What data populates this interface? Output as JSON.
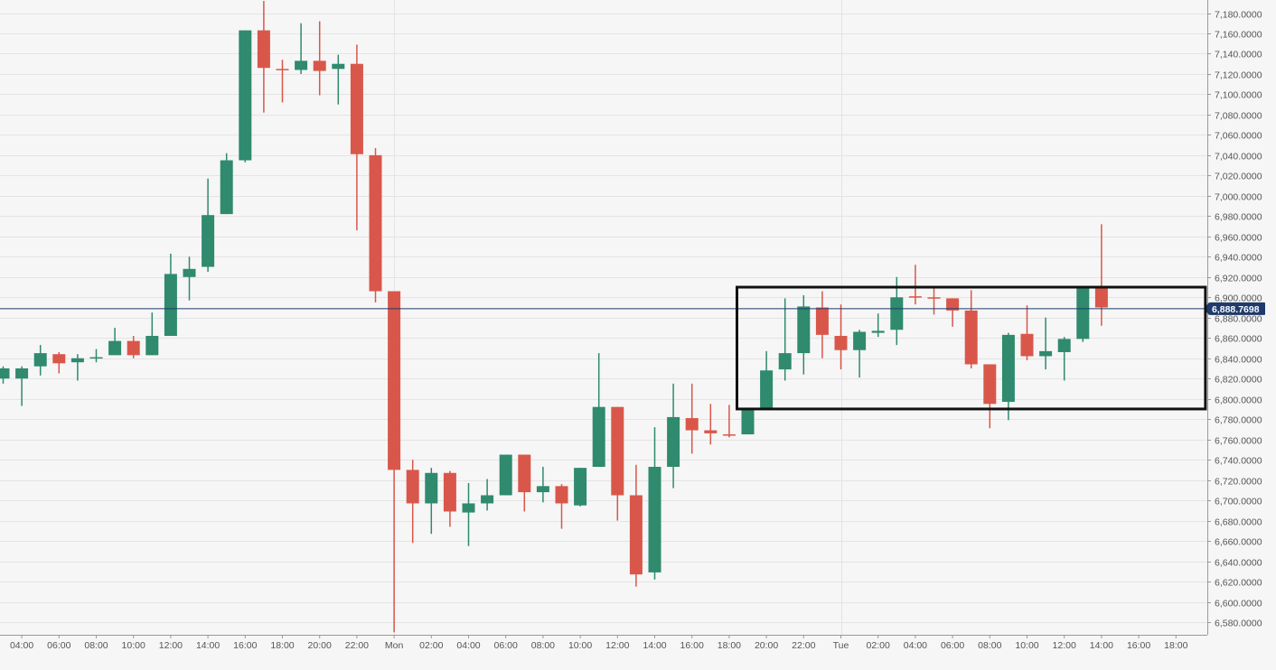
{
  "chart_data": {
    "type": "candlestick",
    "colors": {
      "up": "#2f8a6e",
      "down": "#d9574a",
      "grid": "#e4e4e4",
      "price_line": "#1f3a6b",
      "price_badge": "#1f3a6b",
      "box": "#111111",
      "text": "#555555"
    },
    "y_axis": {
      "min": 6570,
      "max": 7190,
      "ticks": [
        6580,
        6600,
        6620,
        6640,
        6660,
        6680,
        6700,
        6720,
        6740,
        6760,
        6780,
        6800,
        6820,
        6840,
        6860,
        6880,
        6900,
        6920,
        6940,
        6960,
        6980,
        7000,
        7020,
        7040,
        7060,
        7080,
        7100,
        7120,
        7140,
        7160,
        7180
      ],
      "tick_labels": [
        "6,580.0000",
        "6,600.0000",
        "6,620.0000",
        "6,640.0000",
        "6,660.0000",
        "6,680.0000",
        "6,700.0000",
        "6,720.0000",
        "6,740.0000",
        "6,760.0000",
        "6,780.0000",
        "6,800.0000",
        "6,820.0000",
        "6,840.0000",
        "6,860.0000",
        "6,880.0000",
        "6,900.0000",
        "6,920.0000",
        "6,940.0000",
        "6,960.0000",
        "6,980.0000",
        "7,000.0000",
        "7,020.0000",
        "7,040.0000",
        "7,060.0000",
        "7,080.0000",
        "7,100.0000",
        "7,120.0000",
        "7,140.0000",
        "7,160.0000",
        "7,180.0000"
      ]
    },
    "x_axis": {
      "labels": [
        "04:00",
        "06:00",
        "08:00",
        "10:00",
        "12:00",
        "14:00",
        "16:00",
        "18:00",
        "20:00",
        "22:00",
        "Mon",
        "02:00",
        "04:00",
        "06:00",
        "08:00",
        "10:00",
        "12:00",
        "14:00",
        "16:00",
        "18:00",
        "20:00",
        "22:00",
        "Tue",
        "02:00",
        "04:00",
        "06:00",
        "08:00",
        "10:00",
        "12:00",
        "14:00",
        "16:00",
        "18:00"
      ],
      "label_start_index": 1,
      "label_step": 2,
      "vertical_grid_label_indices": [
        10,
        22
      ]
    },
    "current_price": {
      "value": 6888.7698,
      "label": "6,888.7698"
    },
    "range_box": {
      "start_index": 40,
      "end_index": 64,
      "low": 6790,
      "high": 6910
    },
    "candles": [
      {
        "o": 6820,
        "h": 6832,
        "l": 6815,
        "c": 6830
      },
      {
        "o": 6820,
        "h": 6832,
        "l": 6793,
        "c": 6830
      },
      {
        "o": 6832,
        "h": 6853,
        "l": 6823,
        "c": 6845
      },
      {
        "o": 6844,
        "h": 6846,
        "l": 6825,
        "c": 6835
      },
      {
        "o": 6836,
        "h": 6844,
        "l": 6818,
        "c": 6840
      },
      {
        "o": 6840,
        "h": 6849,
        "l": 6836,
        "c": 6841
      },
      {
        "o": 6843,
        "h": 6870,
        "l": 6843,
        "c": 6857
      },
      {
        "o": 6857,
        "h": 6862,
        "l": 6840,
        "c": 6843
      },
      {
        "o": 6843,
        "h": 6885,
        "l": 6843,
        "c": 6862
      },
      {
        "o": 6862,
        "h": 6943,
        "l": 6862,
        "c": 6923
      },
      {
        "o": 6920,
        "h": 6940,
        "l": 6897,
        "c": 6928
      },
      {
        "o": 6930,
        "h": 7017,
        "l": 6925,
        "c": 6981
      },
      {
        "o": 6982,
        "h": 7042,
        "l": 6982,
        "c": 7035
      },
      {
        "o": 7035,
        "h": 7163,
        "l": 7033,
        "c": 7163
      },
      {
        "o": 7163,
        "h": 7192,
        "l": 7082,
        "c": 7126
      },
      {
        "o": 7125,
        "h": 7134,
        "l": 7092,
        "c": 7124
      },
      {
        "o": 7124,
        "h": 7170,
        "l": 7120,
        "c": 7133
      },
      {
        "o": 7133,
        "h": 7172,
        "l": 7099,
        "c": 7123
      },
      {
        "o": 7125,
        "h": 7139,
        "l": 7090,
        "c": 7130
      },
      {
        "o": 7130,
        "h": 7149,
        "l": 6966,
        "c": 7041
      },
      {
        "o": 7040,
        "h": 7047,
        "l": 6895,
        "c": 6906
      },
      {
        "o": 6906,
        "h": 6906,
        "l": 6570,
        "c": 6730
      },
      {
        "o": 6730,
        "h": 6740,
        "l": 6658,
        "c": 6697
      },
      {
        "o": 6697,
        "h": 6732,
        "l": 6667,
        "c": 6727
      },
      {
        "o": 6727,
        "h": 6729,
        "l": 6674,
        "c": 6689
      },
      {
        "o": 6688,
        "h": 6717,
        "l": 6655,
        "c": 6697
      },
      {
        "o": 6697,
        "h": 6721,
        "l": 6690,
        "c": 6705
      },
      {
        "o": 6705,
        "h": 6745,
        "l": 6705,
        "c": 6745
      },
      {
        "o": 6745,
        "h": 6745,
        "l": 6689,
        "c": 6708
      },
      {
        "o": 6708,
        "h": 6733,
        "l": 6698,
        "c": 6714
      },
      {
        "o": 6714,
        "h": 6716,
        "l": 6672,
        "c": 6697
      },
      {
        "o": 6695,
        "h": 6732,
        "l": 6694,
        "c": 6732
      },
      {
        "o": 6733,
        "h": 6845,
        "l": 6733,
        "c": 6792
      },
      {
        "o": 6792,
        "h": 6792,
        "l": 6680,
        "c": 6705
      },
      {
        "o": 6705,
        "h": 6735,
        "l": 6615,
        "c": 6627
      },
      {
        "o": 6629,
        "h": 6772,
        "l": 6622,
        "c": 6733
      },
      {
        "o": 6733,
        "h": 6815,
        "l": 6712,
        "c": 6782
      },
      {
        "o": 6781,
        "h": 6815,
        "l": 6746,
        "c": 6769
      },
      {
        "o": 6769,
        "h": 6795,
        "l": 6755,
        "c": 6766
      },
      {
        "o": 6765,
        "h": 6794,
        "l": 6762,
        "c": 6764
      },
      {
        "o": 6765,
        "h": 6790,
        "l": 6765,
        "c": 6790
      },
      {
        "o": 6790,
        "h": 6847,
        "l": 6790,
        "c": 6828
      },
      {
        "o": 6829,
        "h": 6899,
        "l": 6818,
        "c": 6845
      },
      {
        "o": 6845,
        "h": 6902,
        "l": 6824,
        "c": 6891
      },
      {
        "o": 6890,
        "h": 6906,
        "l": 6840,
        "c": 6863
      },
      {
        "o": 6862,
        "h": 6893,
        "l": 6829,
        "c": 6848
      },
      {
        "o": 6848,
        "h": 6868,
        "l": 6821,
        "c": 6866
      },
      {
        "o": 6865,
        "h": 6884,
        "l": 6861,
        "c": 6867
      },
      {
        "o": 6868,
        "h": 6920,
        "l": 6853,
        "c": 6900
      },
      {
        "o": 6901,
        "h": 6932,
        "l": 6893,
        "c": 6900
      },
      {
        "o": 6900,
        "h": 6910,
        "l": 6883,
        "c": 6899
      },
      {
        "o": 6899,
        "h": 6899,
        "l": 6871,
        "c": 6887
      },
      {
        "o": 6887,
        "h": 6907,
        "l": 6830,
        "c": 6834
      },
      {
        "o": 6834,
        "h": 6834,
        "l": 6771,
        "c": 6795
      },
      {
        "o": 6797,
        "h": 6865,
        "l": 6779,
        "c": 6863
      },
      {
        "o": 6864,
        "h": 6892,
        "l": 6838,
        "c": 6842
      },
      {
        "o": 6842,
        "h": 6880,
        "l": 6829,
        "c": 6847
      },
      {
        "o": 6846,
        "h": 6861,
        "l": 6818,
        "c": 6859
      },
      {
        "o": 6859,
        "h": 6911,
        "l": 6856,
        "c": 6910
      },
      {
        "o": 6909,
        "h": 6972,
        "l": 6872,
        "c": 6890
      }
    ]
  }
}
